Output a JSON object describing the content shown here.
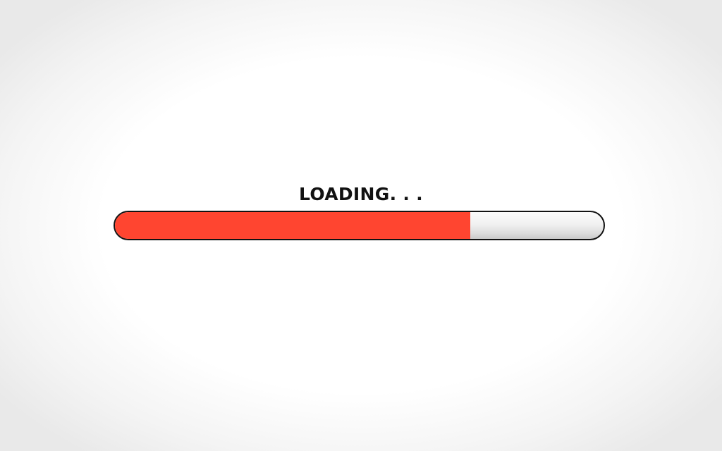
{
  "loader": {
    "label": "LOADING. . .",
    "progress_fraction": 0.727
  },
  "colors": {
    "fill": "#ff4530",
    "outline": "#121212",
    "label": "#111111",
    "track": "#eeeeee"
  }
}
